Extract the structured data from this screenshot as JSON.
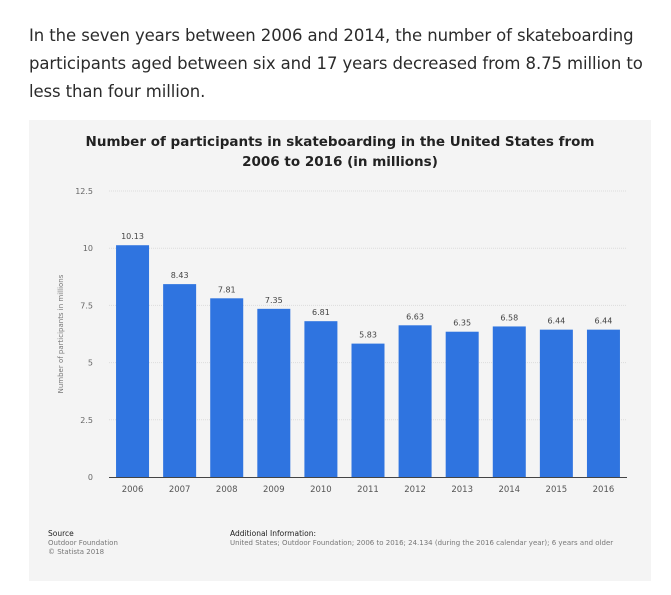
{
  "intro_text": "In the seven years between 2006 and 2014, the number of skateboarding participants aged between six and 17 years decreased from 8.75 million to less than four million.",
  "chart_data": {
    "type": "bar",
    "title_line1": "Number of participants in skateboarding in the United States from",
    "title_line2": "2006 to 2016 (in millions)",
    "xlabel": "",
    "ylabel": "Number of participants in millions",
    "ylim": [
      0,
      12.5
    ],
    "yticks": [
      "0",
      "2.5",
      "5",
      "7.5",
      "10",
      "12.5"
    ],
    "ytick_values": [
      0,
      2.5,
      5,
      7.5,
      10,
      12.5
    ],
    "categories": [
      "2006",
      "2007",
      "2008",
      "2009",
      "2010",
      "2011",
      "2012",
      "2013",
      "2014",
      "2015",
      "2016"
    ],
    "values": [
      10.13,
      8.43,
      7.81,
      7.35,
      6.81,
      5.83,
      6.63,
      6.35,
      6.58,
      6.44,
      6.44
    ],
    "value_labels": [
      "10.13",
      "8.43",
      "7.81",
      "7.35",
      "6.81",
      "5.83",
      "6.63",
      "6.35",
      "6.58",
      "6.44",
      "6.44"
    ],
    "bar_color": "#2f74e0",
    "grid": true
  },
  "footer": {
    "source_header": "Source",
    "source_line1": "Outdoor Foundation",
    "source_line2": "© Statista 2018",
    "additional_header": "Additional Information:",
    "additional_text": "United States; Outdoor Foundation; 2006 to 2016; 24.134 (during the 2016 calendar year); 6 years and older"
  }
}
